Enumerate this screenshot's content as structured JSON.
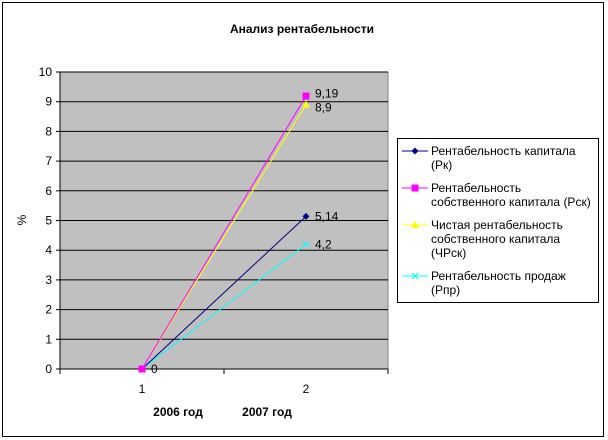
{
  "chart_data": {
    "type": "line",
    "title": "Анализ рентабельности",
    "ylabel": "%",
    "xlabel": "",
    "categories": [
      "1",
      "2"
    ],
    "category_labels": [
      "2006 год",
      "2007 год"
    ],
    "ylim": [
      0,
      10
    ],
    "yticks": [
      "0",
      "1",
      "2",
      "3",
      "4",
      "5",
      "6",
      "7",
      "8",
      "9",
      "10"
    ],
    "grid": true,
    "legend_position": "right",
    "series": [
      {
        "name": "Рентабельность капитала (Рк)",
        "values": [
          0,
          5.14
        ],
        "color": "#000080",
        "marker": "diamond",
        "labels": [
          "0",
          "5,14"
        ]
      },
      {
        "name": "Рентабельность собственного капитала (Рск)",
        "values": [
          0,
          9.19
        ],
        "color": "#FF00FF",
        "marker": "square",
        "labels": [
          "",
          "9,19"
        ]
      },
      {
        "name": "Чистая рентабельность собственного капитала (ЧРск)",
        "values": [
          0,
          8.9
        ],
        "color": "#FFFF00",
        "marker": "triangle",
        "labels": [
          "",
          "8,9"
        ]
      },
      {
        "name": "Рентабельность продаж (Рпр)",
        "values": [
          0,
          4.2
        ],
        "color": "#00FFFF",
        "marker": "x",
        "labels": [
          "",
          "4,2"
        ]
      }
    ],
    "plot_bg": "#C0C0C0"
  }
}
